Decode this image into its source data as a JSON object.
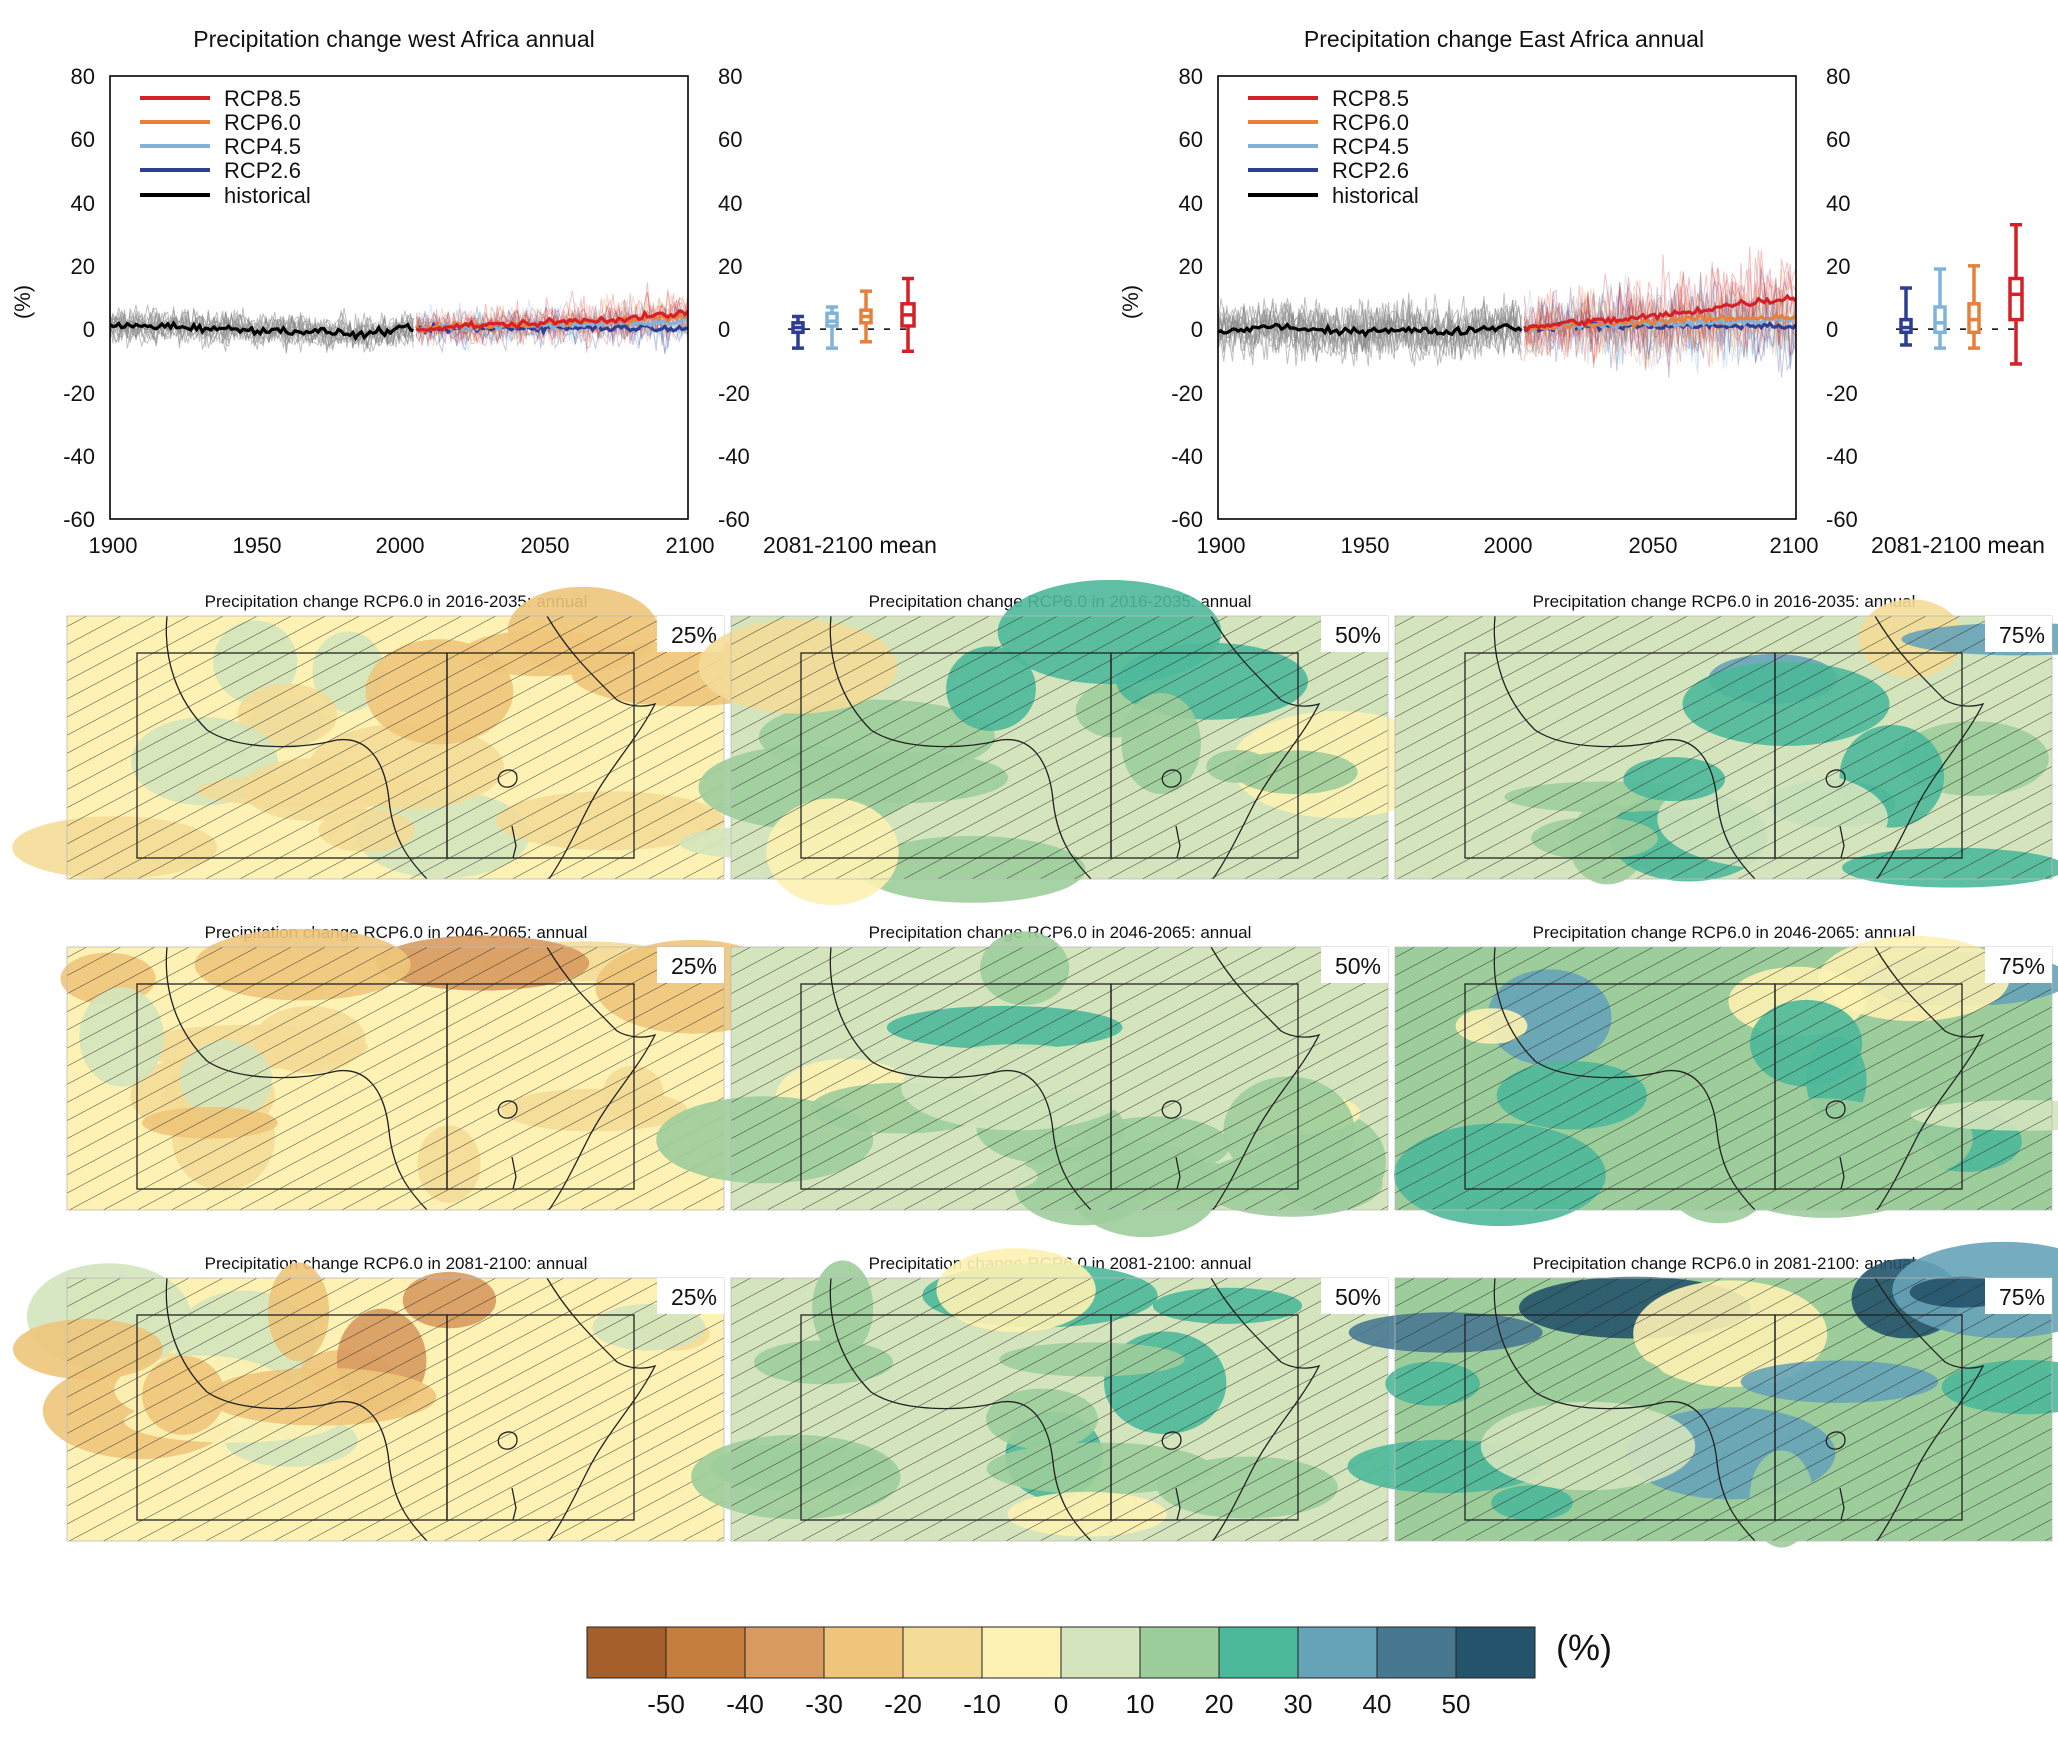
{
  "chart_data": [
    {
      "type": "line",
      "title": "Precipitation change west Africa annual",
      "ylabel": "(%)",
      "xlim": [
        1900,
        2100
      ],
      "ylim": [
        -60,
        80
      ],
      "x_ticks": [
        "1900",
        "1950",
        "2000",
        "2050",
        "2100"
      ],
      "y_ticks": [
        "80",
        "60",
        "40",
        "20",
        "0",
        "-20",
        "-40",
        "-60"
      ],
      "legend_position": "top-left",
      "series": [
        {
          "name": "RCP8.5",
          "color": "#d62027",
          "x": [
            2006,
            2020,
            2040,
            2060,
            2080,
            2100
          ],
          "y": [
            0,
            1,
            1.5,
            2.5,
            3.5,
            5
          ]
        },
        {
          "name": "RCP6.0",
          "color": "#e8803a",
          "x": [
            2006,
            2020,
            2040,
            2060,
            2080,
            2100
          ],
          "y": [
            0,
            1,
            1.5,
            2,
            3,
            4
          ]
        },
        {
          "name": "RCP4.5",
          "color": "#7fb3d9",
          "x": [
            2006,
            2020,
            2040,
            2060,
            2080,
            2100
          ],
          "y": [
            0,
            0.5,
            1,
            1.5,
            2,
            2.5
          ]
        },
        {
          "name": "RCP2.6",
          "color": "#2e3e94",
          "x": [
            2006,
            2020,
            2040,
            2060,
            2080,
            2100
          ],
          "y": [
            0,
            0,
            0.5,
            0.5,
            0.5,
            0.5
          ]
        },
        {
          "name": "historical",
          "color": "#000000",
          "x": [
            1900,
            1920,
            1940,
            1960,
            1980,
            1985,
            2000,
            2005
          ],
          "y": [
            1,
            1,
            0,
            -0.5,
            -1,
            -2,
            0,
            0
          ]
        }
      ],
      "period_label": "2081-2100 mean",
      "boxes": [
        {
          "name": "RCP2.6",
          "color": "#2e3e94",
          "low": -6,
          "q1": -1,
          "median": 0.5,
          "q3": 2,
          "high": 4
        },
        {
          "name": "RCP4.5",
          "color": "#7fb3d9",
          "low": -6,
          "q1": 1,
          "median": 2.5,
          "q3": 5,
          "high": 7
        },
        {
          "name": "RCP6.0",
          "color": "#e8803a",
          "low": -4,
          "q1": 2,
          "median": 4,
          "q3": 6,
          "high": 12
        },
        {
          "name": "RCP8.5",
          "color": "#d62027",
          "low": -7,
          "q1": 1,
          "median": 4.5,
          "q3": 8,
          "high": 16
        }
      ]
    },
    {
      "type": "line",
      "title": "Precipitation change East Africa annual",
      "ylabel": "(%)",
      "xlim": [
        1900,
        2100
      ],
      "ylim": [
        -60,
        80
      ],
      "x_ticks": [
        "1900",
        "1950",
        "2000",
        "2050",
        "2100"
      ],
      "y_ticks": [
        "80",
        "60",
        "40",
        "20",
        "0",
        "-20",
        "-40",
        "-60"
      ],
      "legend_position": "top-left",
      "series": [
        {
          "name": "RCP8.5",
          "color": "#d62027",
          "x": [
            2006,
            2020,
            2040,
            2060,
            2080,
            2100
          ],
          "y": [
            0,
            2,
            3,
            5,
            8,
            10
          ]
        },
        {
          "name": "RCP6.0",
          "color": "#e8803a",
          "x": [
            2006,
            2020,
            2040,
            2060,
            2080,
            2100
          ],
          "y": [
            0,
            1,
            2,
            3,
            3.5,
            4
          ]
        },
        {
          "name": "RCP4.5",
          "color": "#7fb3d9",
          "x": [
            2006,
            2020,
            2040,
            2060,
            2080,
            2100
          ],
          "y": [
            0,
            1,
            1.5,
            2,
            2.5,
            3
          ]
        },
        {
          "name": "RCP2.6",
          "color": "#2e3e94",
          "x": [
            2006,
            2020,
            2040,
            2060,
            2080,
            2100
          ],
          "y": [
            0,
            1,
            1,
            1,
            1,
            1
          ]
        },
        {
          "name": "historical",
          "color": "#000000",
          "x": [
            1900,
            1920,
            1940,
            1960,
            1980,
            2000,
            2005
          ],
          "y": [
            -1,
            1,
            -1,
            0,
            -1,
            1,
            0
          ]
        }
      ],
      "period_label": "2081-2100 mean",
      "boxes": [
        {
          "name": "RCP2.6",
          "color": "#2e3e94",
          "low": -5,
          "q1": -1,
          "median": 0.5,
          "q3": 3,
          "high": 13
        },
        {
          "name": "RCP4.5",
          "color": "#7fb3d9",
          "low": -6,
          "q1": -1,
          "median": 2,
          "q3": 7,
          "high": 19
        },
        {
          "name": "RCP6.0",
          "color": "#e8803a",
          "low": -6,
          "q1": -1,
          "median": 3,
          "q3": 8,
          "high": 20
        },
        {
          "name": "RCP8.5",
          "color": "#d62027",
          "low": -11,
          "q1": 3,
          "median": 11,
          "q3": 16,
          "high": 33
        }
      ]
    },
    {
      "type": "heatmap",
      "maps": [
        {
          "title": "Precipitation change RCP6.0 in 2016-2035: annual",
          "percentile": "25%",
          "mean_change": -5
        },
        {
          "title": "Precipitation change RCP6.0 in 2016-2035: annual",
          "percentile": "50%",
          "mean_change": 2
        },
        {
          "title": "Precipitation change RCP6.0 in 2016-2035: annual",
          "percentile": "75%",
          "mean_change": 7
        },
        {
          "title": "Precipitation change RCP6.0 in 2046-2065: annual",
          "percentile": "25%",
          "mean_change": -6
        },
        {
          "title": "Precipitation change RCP6.0 in 2046-2065: annual",
          "percentile": "50%",
          "mean_change": 3
        },
        {
          "title": "Precipitation change RCP6.0 in 2046-2065: annual",
          "percentile": "75%",
          "mean_change": 12
        },
        {
          "title": "Precipitation change RCP6.0 in 2081-2100: annual",
          "percentile": "25%",
          "mean_change": -7
        },
        {
          "title": "Precipitation change RCP6.0 in 2081-2100: annual",
          "percentile": "50%",
          "mean_change": 5
        },
        {
          "title": "Precipitation change RCP6.0 in 2081-2100: annual",
          "percentile": "75%",
          "mean_change": 18
        }
      ],
      "colorbar": {
        "unit": "(%)",
        "ticks": [
          "-50",
          "-40",
          "-30",
          "-20",
          "-10",
          "0",
          "10",
          "20",
          "30",
          "40",
          "50"
        ],
        "colors": [
          "#a45f2a",
          "#c57e3d",
          "#d89a5f",
          "#eec57b",
          "#f4dc97",
          "#fdf2b3",
          "#d4e4bc",
          "#9ccd9b",
          "#4cb89a",
          "#67a3b8",
          "#487890",
          "#25536c"
        ]
      }
    }
  ]
}
